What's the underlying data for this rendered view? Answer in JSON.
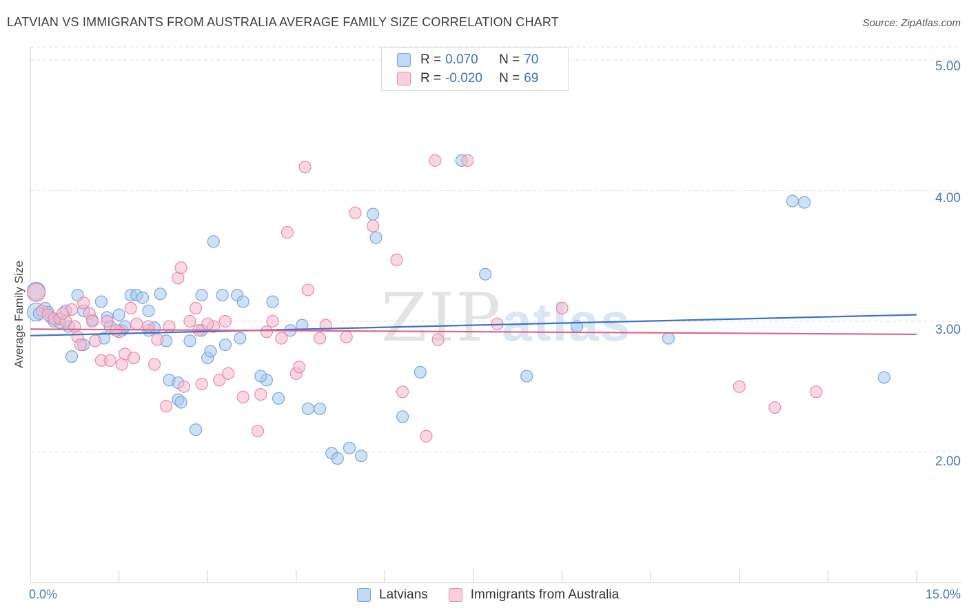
{
  "header": {
    "title": "LATVIAN VS IMMIGRANTS FROM AUSTRALIA AVERAGE FAMILY SIZE CORRELATION CHART",
    "source": "Source: ZipAtlas.com"
  },
  "watermark": {
    "zip": "ZIP",
    "atlas": "atlas"
  },
  "legend": {
    "rows": [
      {
        "r_label": "R =",
        "r_value": "0.070",
        "n_label": "N =",
        "n_value": "70"
      },
      {
        "r_label": "R =",
        "r_value": "-0.020",
        "n_label": "N =",
        "n_value": "69"
      }
    ]
  },
  "bottom_legend": {
    "series1": "Latvians",
    "series2": "Immigrants from Australia"
  },
  "colors": {
    "latvians_fill": "#a8c8f0",
    "latvians_stroke": "#7aa6dd",
    "latvians_line": "#3a74c9",
    "australia_fill": "#f5b8cc",
    "australia_stroke": "#e88aa9",
    "australia_line": "#e0608a",
    "tick_label": "#4a78c2",
    "grid": "#dddddd"
  },
  "chart_data": {
    "type": "scatter",
    "title": "LATVIAN VS IMMIGRANTS FROM AUSTRALIA AVERAGE FAMILY SIZE CORRELATION CHART",
    "xlabel": "",
    "ylabel": "Average Family Size",
    "xlim": [
      0,
      15
    ],
    "ylim": [
      1.0,
      5.1
    ],
    "x_tick_labels": [
      "0.0%",
      "15.0%"
    ],
    "y_ticks": [
      2.0,
      3.0,
      4.0,
      5.0
    ],
    "y_tick_labels": [
      "2.00",
      "3.00",
      "4.00",
      "5.00"
    ],
    "grid": true,
    "legend_position": "top-center",
    "series": [
      {
        "name": "Latvians",
        "r": 0.07,
        "n": 70,
        "trend": [
          [
            0,
            2.89
          ],
          [
            15,
            3.05
          ]
        ],
        "points": [
          [
            0.1,
            3.23
          ],
          [
            0.1,
            3.07
          ],
          [
            0.25,
            3.1
          ],
          [
            0.3,
            3.07
          ],
          [
            0.35,
            3.03
          ],
          [
            0.4,
            3.0
          ],
          [
            0.6,
            3.08
          ],
          [
            0.65,
            2.96
          ],
          [
            0.8,
            3.2
          ],
          [
            0.9,
            2.82
          ],
          [
            0.9,
            3.08
          ],
          [
            1.05,
            3.01
          ],
          [
            1.2,
            3.15
          ],
          [
            1.3,
            3.03
          ],
          [
            1.35,
            2.96
          ],
          [
            1.5,
            3.05
          ],
          [
            1.55,
            2.93
          ],
          [
            1.7,
            3.2
          ],
          [
            1.8,
            3.2
          ],
          [
            1.9,
            3.18
          ],
          [
            2.0,
            3.08
          ],
          [
            2.1,
            2.95
          ],
          [
            2.2,
            3.21
          ],
          [
            2.3,
            2.85
          ],
          [
            2.35,
            2.55
          ],
          [
            2.5,
            2.4
          ],
          [
            2.5,
            2.53
          ],
          [
            2.7,
            2.85
          ],
          [
            2.8,
            2.17
          ],
          [
            2.9,
            3.2
          ],
          [
            3.0,
            2.72
          ],
          [
            3.05,
            2.77
          ],
          [
            3.1,
            3.61
          ],
          [
            3.25,
            3.2
          ],
          [
            3.3,
            2.82
          ],
          [
            3.5,
            3.2
          ],
          [
            3.55,
            2.87
          ],
          [
            3.6,
            3.15
          ],
          [
            4.0,
            2.55
          ],
          [
            4.1,
            3.15
          ],
          [
            4.2,
            2.41
          ],
          [
            4.6,
            2.97
          ],
          [
            4.7,
            2.33
          ],
          [
            4.9,
            2.33
          ],
          [
            5.1,
            1.99
          ],
          [
            5.2,
            1.95
          ],
          [
            5.4,
            2.03
          ],
          [
            5.6,
            1.97
          ],
          [
            5.8,
            3.82
          ],
          [
            5.85,
            3.64
          ],
          [
            6.3,
            2.27
          ],
          [
            6.6,
            2.61
          ],
          [
            7.3,
            4.23
          ],
          [
            7.7,
            3.36
          ],
          [
            8.4,
            2.58
          ],
          [
            9.25,
            2.96
          ],
          [
            10.8,
            2.87
          ],
          [
            12.9,
            3.92
          ],
          [
            13.1,
            3.91
          ],
          [
            14.45,
            2.57
          ],
          [
            0.15,
            3.06
          ],
          [
            0.5,
            2.99
          ],
          [
            0.7,
            2.73
          ],
          [
            1.25,
            2.87
          ],
          [
            2.0,
            2.93
          ],
          [
            2.9,
            2.93
          ],
          [
            3.9,
            2.58
          ],
          [
            4.4,
            2.93
          ],
          [
            1.6,
            2.96
          ],
          [
            2.55,
            2.38
          ]
        ]
      },
      {
        "name": "Immigrants from Australia",
        "r": -0.02,
        "n": 69,
        "trend": [
          [
            0,
            2.94
          ],
          [
            15,
            2.9
          ]
        ],
        "points": [
          [
            0.1,
            3.22
          ],
          [
            0.2,
            3.08
          ],
          [
            0.3,
            3.05
          ],
          [
            0.4,
            3.02
          ],
          [
            0.5,
            3.02
          ],
          [
            0.6,
            3.0
          ],
          [
            0.7,
            3.09
          ],
          [
            0.75,
            2.96
          ],
          [
            0.8,
            2.88
          ],
          [
            0.85,
            2.82
          ],
          [
            1.0,
            3.06
          ],
          [
            1.05,
            3.0
          ],
          [
            1.1,
            2.85
          ],
          [
            1.2,
            2.7
          ],
          [
            1.3,
            3.0
          ],
          [
            1.35,
            2.7
          ],
          [
            1.5,
            2.92
          ],
          [
            1.55,
            2.67
          ],
          [
            1.6,
            2.75
          ],
          [
            1.7,
            3.1
          ],
          [
            1.75,
            2.72
          ],
          [
            1.8,
            2.98
          ],
          [
            2.0,
            2.96
          ],
          [
            2.1,
            2.67
          ],
          [
            2.15,
            2.86
          ],
          [
            2.3,
            2.35
          ],
          [
            2.5,
            3.33
          ],
          [
            2.55,
            3.41
          ],
          [
            2.6,
            2.5
          ],
          [
            2.7,
            3.0
          ],
          [
            2.8,
            3.1
          ],
          [
            2.85,
            2.93
          ],
          [
            2.9,
            2.52
          ],
          [
            3.1,
            2.96
          ],
          [
            3.2,
            2.55
          ],
          [
            3.3,
            3.0
          ],
          [
            3.35,
            2.6
          ],
          [
            3.6,
            2.42
          ],
          [
            3.85,
            2.16
          ],
          [
            3.9,
            2.44
          ],
          [
            4.1,
            3.0
          ],
          [
            4.25,
            2.87
          ],
          [
            4.35,
            3.68
          ],
          [
            4.5,
            2.6
          ],
          [
            4.55,
            2.65
          ],
          [
            4.65,
            4.18
          ],
          [
            4.7,
            3.24
          ],
          [
            4.9,
            2.87
          ],
          [
            5.0,
            2.97
          ],
          [
            5.35,
            2.88
          ],
          [
            5.5,
            3.83
          ],
          [
            5.8,
            3.73
          ],
          [
            6.2,
            3.47
          ],
          [
            6.3,
            2.46
          ],
          [
            6.7,
            2.12
          ],
          [
            6.85,
            4.23
          ],
          [
            6.9,
            2.86
          ],
          [
            7.4,
            4.23
          ],
          [
            7.9,
            2.98
          ],
          [
            9.0,
            3.1
          ],
          [
            12.0,
            2.5
          ],
          [
            12.6,
            2.34
          ],
          [
            13.3,
            2.46
          ],
          [
            0.9,
            3.14
          ],
          [
            1.45,
            2.93
          ],
          [
            2.35,
            2.96
          ],
          [
            3.0,
            2.98
          ],
          [
            4.0,
            2.92
          ],
          [
            0.55,
            3.06
          ]
        ]
      }
    ]
  }
}
